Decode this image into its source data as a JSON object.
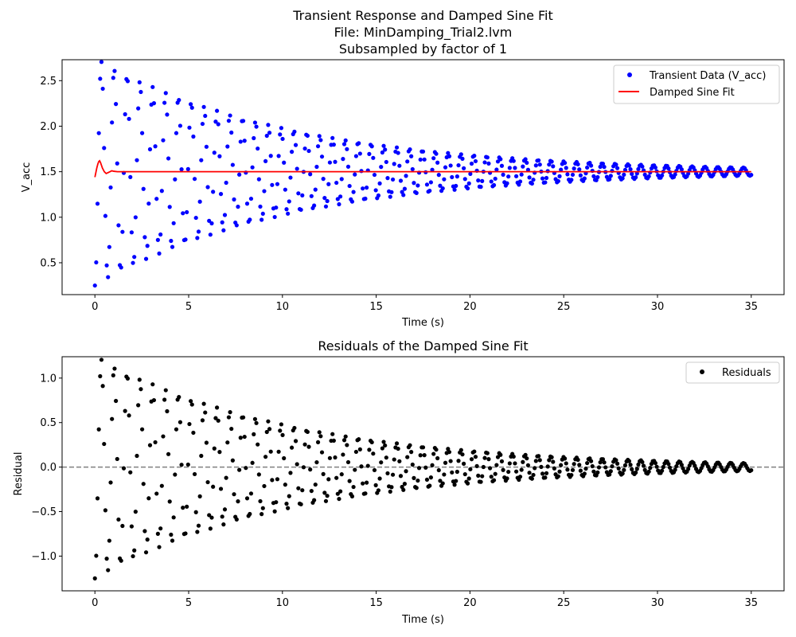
{
  "chart_data": [
    {
      "type": "scatter",
      "title_lines": [
        "Transient Response and Damped Sine Fit",
        "File: MinDamping_Trial2.lvm",
        "Subsampled by factor of 1"
      ],
      "xlabel": "Time (s)",
      "ylabel": "V_acc",
      "xlim": [
        -1.75,
        36.75
      ],
      "ylim": [
        0.15,
        2.73
      ],
      "xticks": [
        0,
        5,
        10,
        15,
        20,
        25,
        30,
        35
      ],
      "yticks": [
        0.5,
        1.0,
        1.5,
        2.0,
        2.5
      ],
      "xtick_labels": [
        "0",
        "5",
        "10",
        "15",
        "20",
        "25",
        "30",
        "35"
      ],
      "ytick_labels": [
        "0.5",
        "1.0",
        "1.5",
        "2.0",
        "2.5"
      ],
      "grid": false,
      "legend_placement": "top-right",
      "series": [
        {
          "name": "Transient Data (V_acc)",
          "kind": "points",
          "color": "#0000ff",
          "model": {
            "offset": 1.5,
            "amplitude": 1.25,
            "decay_rate": 0.096,
            "frequency_hz": 1.46,
            "phase": 4.71,
            "t_start": 0.0,
            "t_end": 35.0,
            "sample_interval": 0.07
          }
        },
        {
          "name": "Damped Sine Fit",
          "kind": "line",
          "color": "#ff0000",
          "x": [
            0.0,
            0.05,
            0.1,
            0.15,
            0.2,
            0.25,
            0.3,
            0.35,
            0.4,
            0.5,
            0.6,
            0.7,
            0.8,
            0.9,
            1.0,
            1.2,
            1.5,
            2.0,
            3.0,
            5.0,
            10.0,
            15.0,
            20.0,
            25.0,
            30.0,
            35.0
          ],
          "y": [
            1.44,
            1.49,
            1.54,
            1.58,
            1.61,
            1.62,
            1.6,
            1.57,
            1.54,
            1.5,
            1.48,
            1.49,
            1.5,
            1.51,
            1.505,
            1.5,
            1.5,
            1.5,
            1.5,
            1.5,
            1.5,
            1.5,
            1.5,
            1.5,
            1.5,
            1.5
          ]
        }
      ]
    },
    {
      "type": "scatter",
      "title_lines": [
        "Residuals of the Damped Sine Fit"
      ],
      "xlabel": "Time (s)",
      "ylabel": "Residual",
      "xlim": [
        -1.75,
        36.75
      ],
      "ylim": [
        -1.39,
        1.24
      ],
      "xticks": [
        0,
        5,
        10,
        15,
        20,
        25,
        30,
        35
      ],
      "yticks": [
        -1.0,
        -0.5,
        0.0,
        0.5,
        1.0
      ],
      "xtick_labels": [
        "0",
        "5",
        "10",
        "15",
        "20",
        "25",
        "30",
        "35"
      ],
      "ytick_labels": [
        "−1.0",
        "−0.5",
        "0.0",
        "0.5",
        "1.0"
      ],
      "grid": false,
      "legend_placement": "top-right",
      "reference_line": {
        "y": 0.0,
        "style": "dashed",
        "color": "#808080"
      },
      "series": [
        {
          "name": "Residuals",
          "kind": "points",
          "color": "#000000",
          "model": {
            "offset": 0.0,
            "amplitude": 1.25,
            "decay_rate": 0.096,
            "frequency_hz": 1.46,
            "phase": 4.71,
            "t_start": 0.0,
            "t_end": 35.0,
            "sample_interval": 0.07
          }
        }
      ]
    }
  ]
}
